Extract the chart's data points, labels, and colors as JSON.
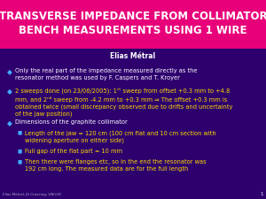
{
  "title_line1": "TRANSVERSE IMPEDANCE FROM COLLIMATOR",
  "title_line2": "BENCH MEASUREMENTS USING 1 WIRE",
  "title_bg": "#e8007a",
  "slide_bg": "#2d006e",
  "title_color": "#ffffff",
  "author": "Elias Métral",
  "author_color": "#ffffff",
  "bullet_color": "#44aaff",
  "sub_bullet_color": "#44aaff",
  "yellow_text": "#ffdd00",
  "white_text": "#ffffff",
  "footer_text": "Elias Métral, JS Crossing, UNILHC",
  "footer_page": "1",
  "footer_color": "#aaaacc"
}
